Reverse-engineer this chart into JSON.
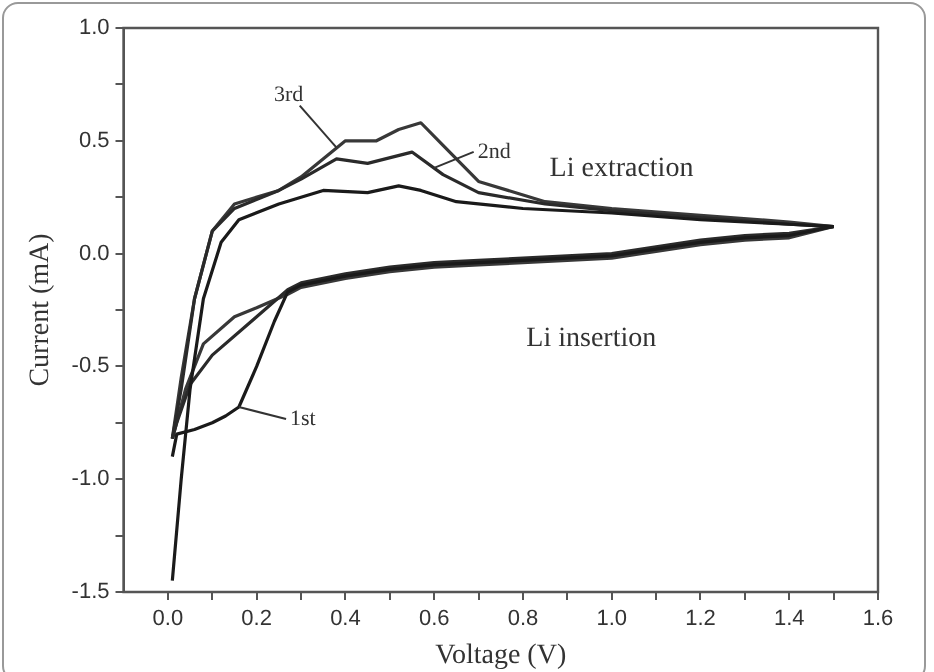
{
  "chart_data": {
    "type": "line",
    "xlabel": "Voltage (V)",
    "ylabel": "Current (mA)",
    "xlim": [
      -0.1,
      1.6
    ],
    "ylim": [
      -1.5,
      1.0
    ],
    "xticks": [
      {
        "value": 0,
        "label": "0.0"
      },
      {
        "value": 0.1,
        "label": null
      },
      {
        "value": 0.2,
        "label": "0.2"
      },
      {
        "value": 0.3,
        "label": null
      },
      {
        "value": 0.4,
        "label": "0.4"
      },
      {
        "value": 0.5,
        "label": null
      },
      {
        "value": 0.6,
        "label": "0.6"
      },
      {
        "value": 0.7,
        "label": null
      },
      {
        "value": 0.8,
        "label": "0.8"
      },
      {
        "value": 0.9,
        "label": null
      },
      {
        "value": 1,
        "label": "1.0"
      },
      {
        "value": 1.1,
        "label": null
      },
      {
        "value": 1.2,
        "label": "1.2"
      },
      {
        "value": 1.3,
        "label": null
      },
      {
        "value": 1.4,
        "label": "1.4"
      },
      {
        "value": 1.5,
        "label": null
      },
      {
        "value": 1.6,
        "label": "1.6"
      }
    ],
    "yticks": [
      {
        "value": -1.5,
        "label": "-1.5"
      },
      {
        "value": -1.25,
        "label": null
      },
      {
        "value": -1,
        "label": "-1.0"
      },
      {
        "value": -0.75,
        "label": null
      },
      {
        "value": -0.5,
        "label": "-0.5"
      },
      {
        "value": -0.25,
        "label": null
      },
      {
        "value": 0,
        "label": "0.0"
      },
      {
        "value": 0.25,
        "label": null
      },
      {
        "value": 0.5,
        "label": "0.5"
      },
      {
        "value": 0.75,
        "label": null
      },
      {
        "value": 1,
        "label": "1.0"
      }
    ],
    "grid": false,
    "legend": false,
    "marker": "none",
    "line_style": "solid",
    "series": [
      {
        "color": "#1a1a1a",
        "x": [
          0.01,
          0.02,
          0.06,
          0.1,
          0.13,
          0.16,
          0.2,
          0.24,
          0.27,
          0.3,
          0.4,
          0.5,
          0.6,
          0.7,
          0.8,
          0.9,
          1.0,
          1.1,
          1.2,
          1.3,
          1.4,
          1.5
        ],
        "values": [
          -0.9,
          -0.8,
          -0.78,
          -0.75,
          -0.72,
          -0.68,
          -0.5,
          -0.3,
          -0.17,
          -0.14,
          -0.1,
          -0.07,
          -0.05,
          -0.04,
          -0.03,
          -0.02,
          -0.01,
          0.02,
          0.05,
          0.07,
          0.08,
          0.12
        ]
      },
      {
        "color": "#1a1a1a",
        "x": [
          0.01,
          0.03,
          0.05,
          0.08,
          0.12,
          0.16,
          0.25,
          0.35,
          0.45,
          0.52,
          0.57,
          0.65,
          0.8,
          1.0,
          1.2,
          1.4,
          1.5
        ],
        "values": [
          -1.45,
          -1.0,
          -0.6,
          -0.2,
          0.05,
          0.15,
          0.22,
          0.28,
          0.27,
          0.3,
          0.28,
          0.23,
          0.2,
          0.18,
          0.15,
          0.13,
          0.12
        ]
      },
      {
        "color": "#2a2a2a",
        "x": [
          0.01,
          0.02,
          0.05,
          0.1,
          0.2,
          0.27,
          0.3,
          0.4,
          0.5,
          0.6,
          0.7,
          0.8,
          0.9,
          1.0,
          1.1,
          1.2,
          1.3,
          1.4,
          1.5
        ],
        "values": [
          -0.82,
          -0.75,
          -0.58,
          -0.45,
          -0.28,
          -0.16,
          -0.13,
          -0.09,
          -0.06,
          -0.04,
          -0.03,
          -0.02,
          -0.01,
          0,
          0.03,
          0.06,
          0.08,
          0.09,
          0.12
        ]
      },
      {
        "color": "#2a2a2a",
        "x": [
          0.01,
          0.03,
          0.06,
          0.1,
          0.15,
          0.25,
          0.3,
          0.38,
          0.45,
          0.55,
          0.62,
          0.7,
          0.85,
          1.0,
          1.2,
          1.4,
          1.5
        ],
        "values": [
          -0.82,
          -0.6,
          -0.2,
          0.1,
          0.2,
          0.28,
          0.33,
          0.42,
          0.4,
          0.45,
          0.35,
          0.27,
          0.22,
          0.19,
          0.16,
          0.13,
          0.12
        ]
      },
      {
        "color": "#383838",
        "x": [
          0.01,
          0.04,
          0.08,
          0.15,
          0.2,
          0.27,
          0.3,
          0.4,
          0.5,
          0.6,
          0.7,
          0.8,
          0.9,
          1.0,
          1.1,
          1.2,
          1.3,
          1.4,
          1.5
        ],
        "values": [
          -0.82,
          -0.6,
          -0.4,
          -0.28,
          -0.24,
          -0.18,
          -0.15,
          -0.11,
          -0.08,
          -0.06,
          -0.05,
          -0.04,
          -0.03,
          -0.02,
          0.01,
          0.04,
          0.06,
          0.07,
          0.12
        ]
      },
      {
        "color": "#383838",
        "x": [
          0.01,
          0.03,
          0.06,
          0.1,
          0.15,
          0.25,
          0.3,
          0.4,
          0.47,
          0.52,
          0.57,
          0.62,
          0.7,
          0.85,
          1.0,
          1.2,
          1.4,
          1.5
        ],
        "values": [
          -0.82,
          -0.55,
          -0.2,
          0.1,
          0.22,
          0.28,
          0.34,
          0.5,
          0.5,
          0.55,
          0.58,
          0.48,
          0.32,
          0.23,
          0.2,
          0.17,
          0.14,
          0.12
        ]
      }
    ],
    "annotations": [
      {
        "text": "3rd",
        "x": 0.38,
        "y": 0.47
      },
      {
        "text": "2nd",
        "x": 0.6,
        "y": 0.38
      },
      {
        "text": "1st",
        "x": 0.16,
        "y": -0.68
      },
      "Li extraction",
      "Li insertion"
    ]
  }
}
